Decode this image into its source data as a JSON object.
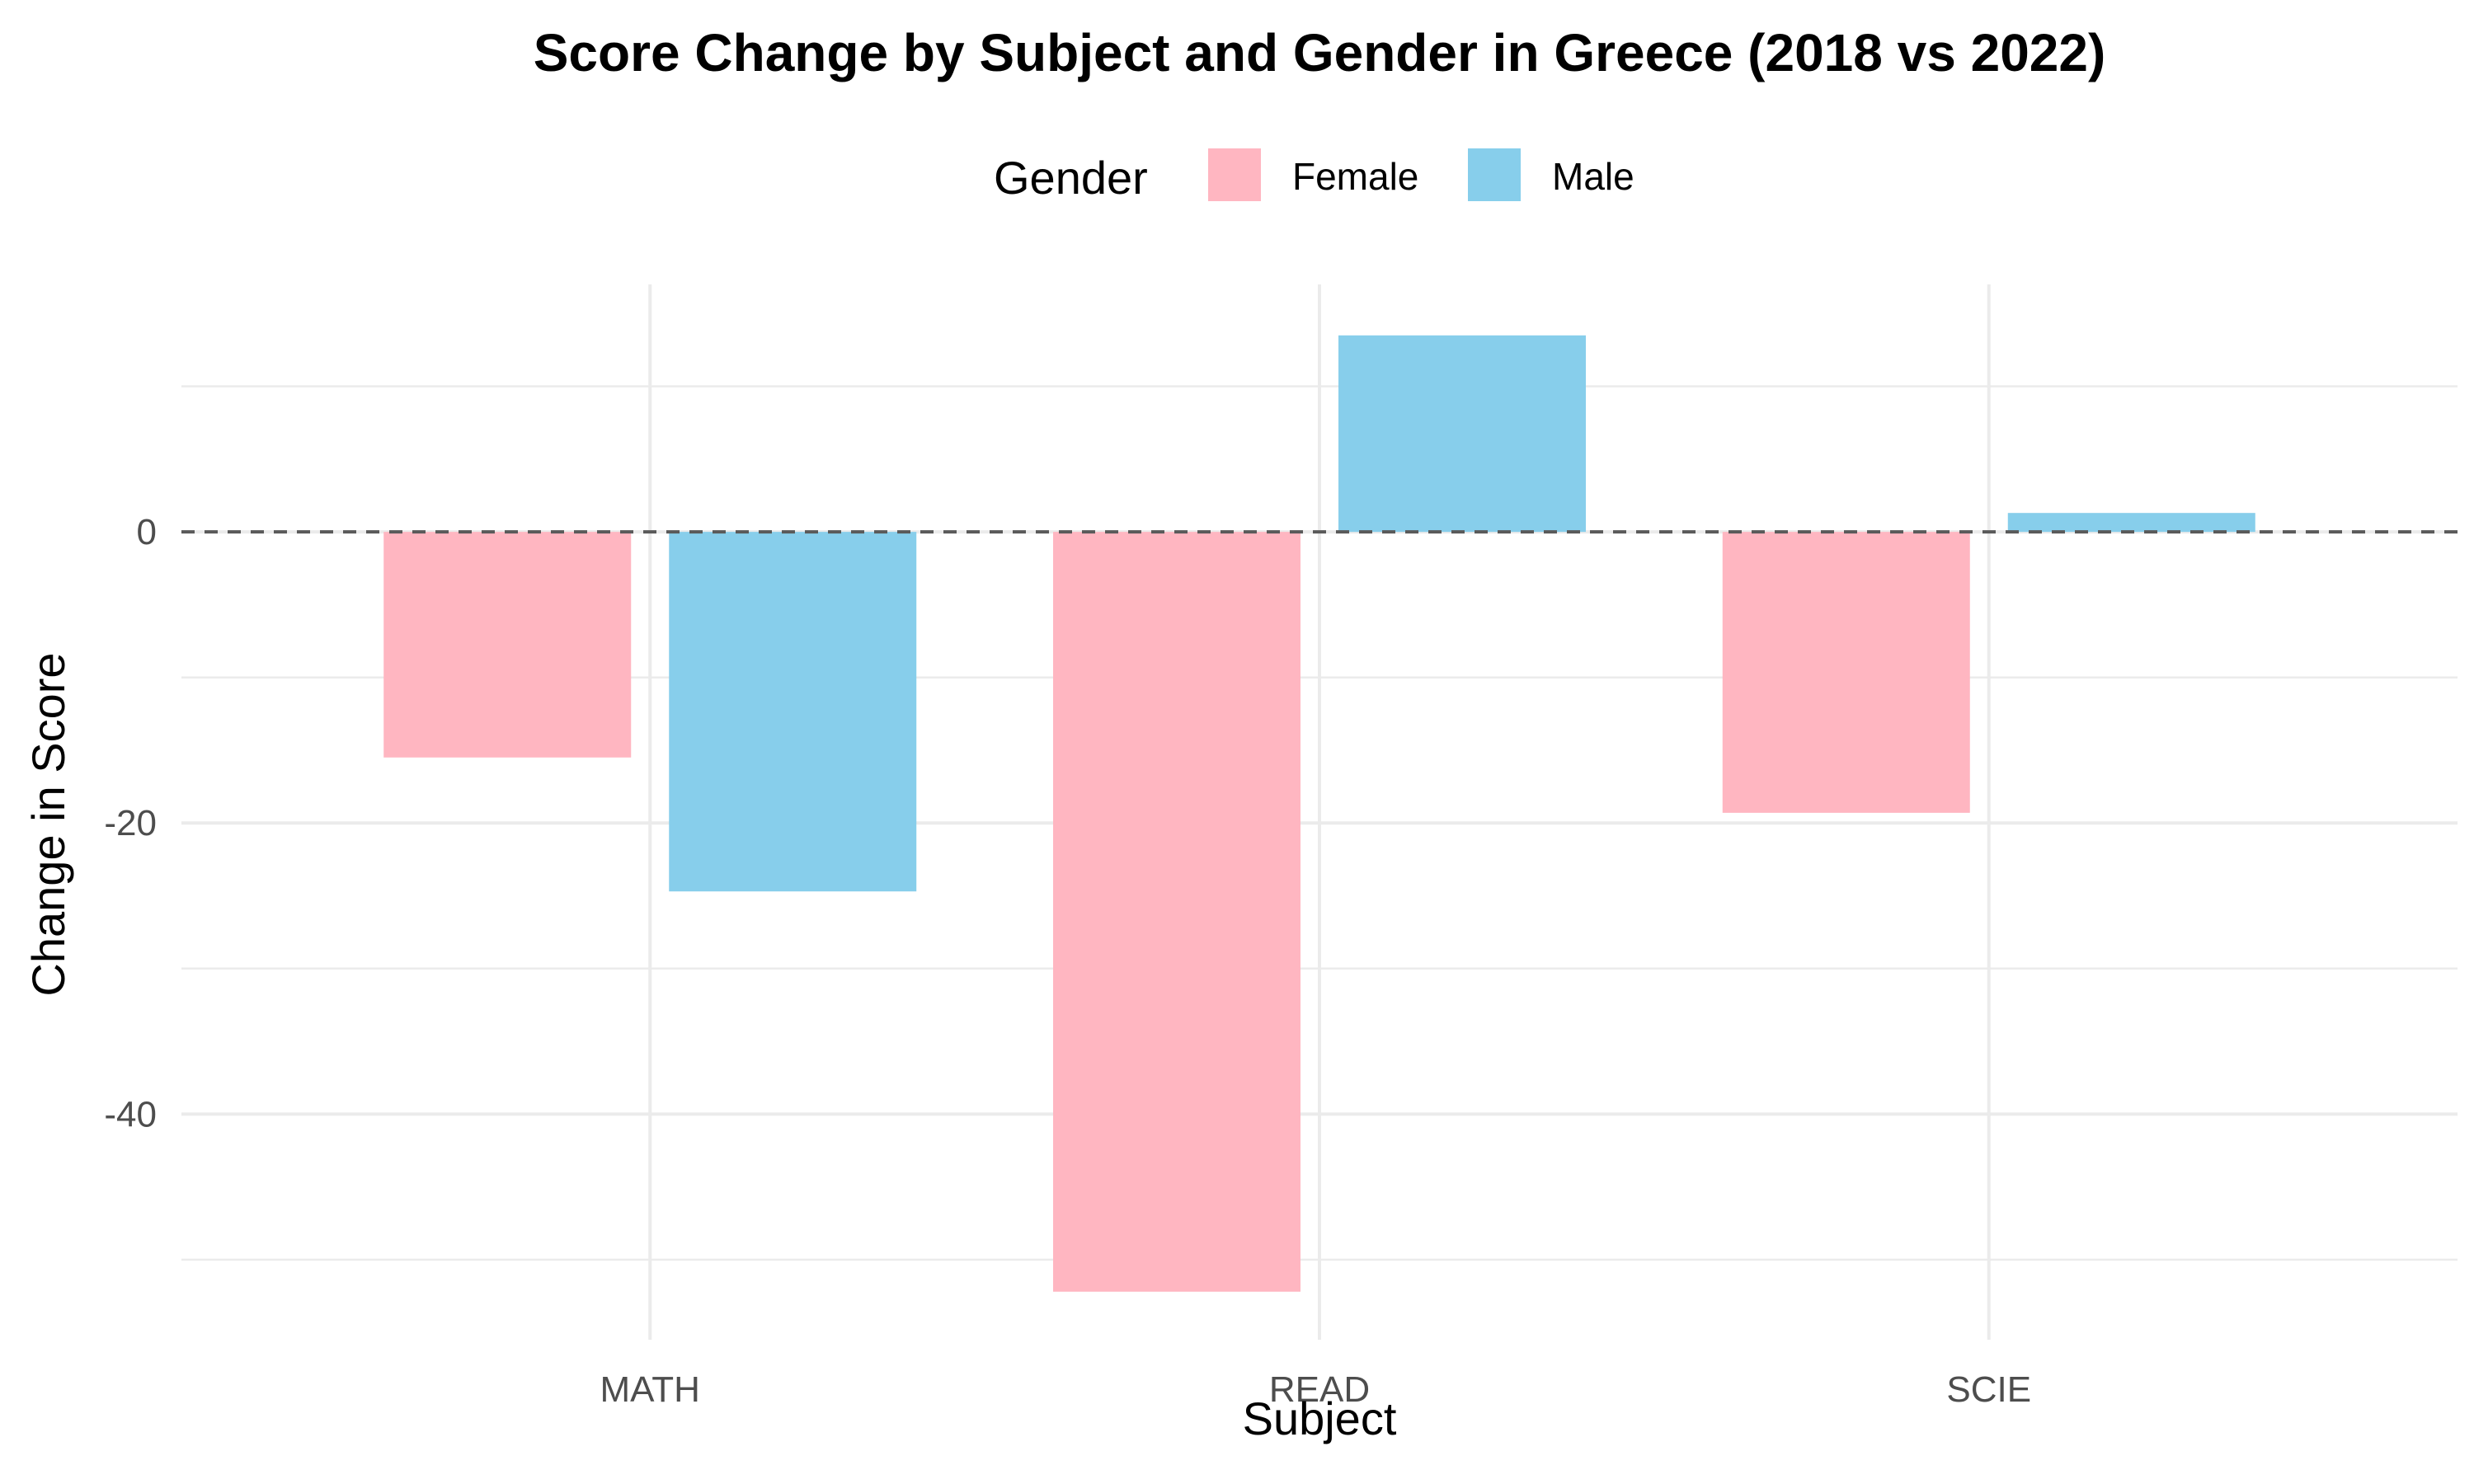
{
  "chart_data": {
    "type": "bar",
    "title": "Score Change by Subject and Gender in Greece (2018 vs 2022)",
    "xlabel": "Subject",
    "ylabel": "Change in Score",
    "categories": [
      "MATH",
      "READ",
      "SCIE"
    ],
    "series": [
      {
        "name": "Female",
        "color": "#FFB6C1",
        "values": [
          -15.5,
          -52.2,
          -19.3
        ]
      },
      {
        "name": "Male",
        "color": "#87CEEB",
        "values": [
          -24.7,
          13.5,
          1.3
        ]
      }
    ],
    "legend": {
      "title": "Gender",
      "position": "top"
    },
    "ylim": [
      -55.5,
      17.0
    ],
    "y_ticks": [
      -40,
      -20,
      0
    ],
    "y_tick_labels": [
      "-40",
      "-20",
      "0"
    ],
    "y_minor_ticks": [
      -50,
      -30,
      -10,
      10
    ],
    "reference_line": {
      "y": 0,
      "style": "dashed"
    },
    "grid": true
  }
}
